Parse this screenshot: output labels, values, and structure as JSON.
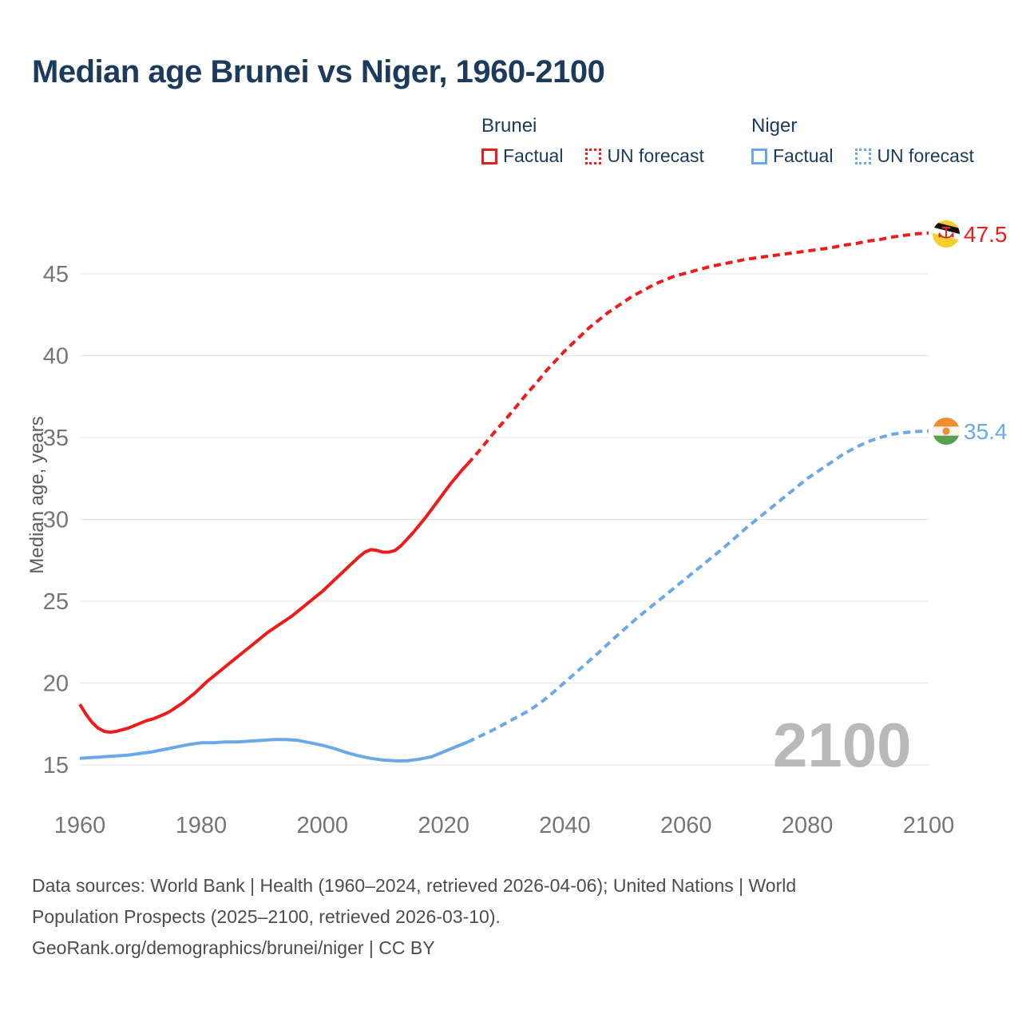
{
  "title": "Median age Brunei vs Niger, 1960-2100",
  "legend": {
    "groups": [
      {
        "label": "Brunei",
        "color": "#ee1b1b",
        "items": [
          {
            "label": "Factual",
            "style": "solid"
          },
          {
            "label": "UN forecast",
            "style": "dotted"
          }
        ]
      },
      {
        "label": "Niger",
        "color": "#6aa9e9",
        "items": [
          {
            "label": "Factual",
            "style": "solid"
          },
          {
            "label": "UN forecast",
            "style": "dotted"
          }
        ]
      }
    ]
  },
  "chart_data": {
    "type": "line",
    "title": "Median age Brunei vs Niger, 1960-2100",
    "xlabel": "",
    "ylabel": "Median age, years",
    "xlim": [
      1960,
      2100
    ],
    "ylim": [
      15,
      47.5
    ],
    "xticks": [
      1960,
      1980,
      2000,
      2020,
      2040,
      2060,
      2080,
      2100
    ],
    "yticks": [
      15,
      20,
      25,
      30,
      35,
      40,
      45
    ],
    "grid": "horizontal",
    "legend_position": "top-right",
    "series": [
      {
        "name": "Brunei Factual",
        "color": "#ee1b1b",
        "dash": false,
        "points": [
          [
            1960,
            18.7
          ],
          [
            1961,
            18.1
          ],
          [
            1962,
            17.6
          ],
          [
            1963,
            17.25
          ],
          [
            1964,
            17.05
          ],
          [
            1965,
            17.0
          ],
          [
            1966,
            17.05
          ],
          [
            1967,
            17.15
          ],
          [
            1968,
            17.25
          ],
          [
            1969,
            17.4
          ],
          [
            1970,
            17.55
          ],
          [
            1971,
            17.7
          ],
          [
            1972,
            17.8
          ],
          [
            1973,
            17.95
          ],
          [
            1974,
            18.1
          ],
          [
            1975,
            18.3
          ],
          [
            1976,
            18.55
          ],
          [
            1977,
            18.8
          ],
          [
            1978,
            19.1
          ],
          [
            1979,
            19.4
          ],
          [
            1980,
            19.75
          ],
          [
            1981,
            20.1
          ],
          [
            1982,
            20.4
          ],
          [
            1983,
            20.7
          ],
          [
            1984,
            21.0
          ],
          [
            1985,
            21.3
          ],
          [
            1986,
            21.6
          ],
          [
            1987,
            21.9
          ],
          [
            1988,
            22.2
          ],
          [
            1989,
            22.5
          ],
          [
            1990,
            22.8
          ],
          [
            1991,
            23.1
          ],
          [
            1992,
            23.35
          ],
          [
            1993,
            23.6
          ],
          [
            1994,
            23.85
          ],
          [
            1995,
            24.1
          ],
          [
            1996,
            24.4
          ],
          [
            1997,
            24.7
          ],
          [
            1998,
            25.0
          ],
          [
            1999,
            25.3
          ],
          [
            2000,
            25.6
          ],
          [
            2001,
            25.95
          ],
          [
            2002,
            26.3
          ],
          [
            2003,
            26.65
          ],
          [
            2004,
            27.0
          ],
          [
            2005,
            27.35
          ],
          [
            2006,
            27.7
          ],
          [
            2007,
            28.0
          ],
          [
            2008,
            28.15
          ],
          [
            2009,
            28.1
          ],
          [
            2010,
            28.0
          ],
          [
            2011,
            28.0
          ],
          [
            2012,
            28.1
          ],
          [
            2013,
            28.4
          ],
          [
            2014,
            28.8
          ],
          [
            2015,
            29.2
          ],
          [
            2016,
            29.65
          ],
          [
            2017,
            30.1
          ],
          [
            2018,
            30.6
          ],
          [
            2019,
            31.1
          ],
          [
            2020,
            31.6
          ],
          [
            2021,
            32.1
          ],
          [
            2022,
            32.55
          ],
          [
            2023,
            33.0
          ],
          [
            2024,
            33.4
          ]
        ]
      },
      {
        "name": "Brunei UN forecast",
        "color": "#ee1b1b",
        "dash": true,
        "points": [
          [
            2024,
            33.4
          ],
          [
            2025,
            33.8
          ],
          [
            2026,
            34.25
          ],
          [
            2027,
            34.7
          ],
          [
            2028,
            35.15
          ],
          [
            2029,
            35.6
          ],
          [
            2030,
            36.0
          ],
          [
            2031,
            36.45
          ],
          [
            2032,
            36.9
          ],
          [
            2033,
            37.35
          ],
          [
            2034,
            37.8
          ],
          [
            2035,
            38.2
          ],
          [
            2036,
            38.65
          ],
          [
            2037,
            39.1
          ],
          [
            2038,
            39.5
          ],
          [
            2039,
            39.9
          ],
          [
            2040,
            40.3
          ],
          [
            2041,
            40.65
          ],
          [
            2042,
            41.0
          ],
          [
            2043,
            41.35
          ],
          [
            2044,
            41.7
          ],
          [
            2045,
            42.0
          ],
          [
            2046,
            42.3
          ],
          [
            2047,
            42.6
          ],
          [
            2048,
            42.85
          ],
          [
            2049,
            43.1
          ],
          [
            2050,
            43.35
          ],
          [
            2051,
            43.6
          ],
          [
            2052,
            43.8
          ],
          [
            2053,
            44.0
          ],
          [
            2054,
            44.2
          ],
          [
            2055,
            44.4
          ],
          [
            2056,
            44.55
          ],
          [
            2057,
            44.7
          ],
          [
            2058,
            44.85
          ],
          [
            2059,
            44.95
          ],
          [
            2060,
            45.05
          ],
          [
            2062,
            45.25
          ],
          [
            2064,
            45.45
          ],
          [
            2066,
            45.6
          ],
          [
            2068,
            45.75
          ],
          [
            2070,
            45.9
          ],
          [
            2072,
            46.0
          ],
          [
            2074,
            46.1
          ],
          [
            2076,
            46.2
          ],
          [
            2078,
            46.3
          ],
          [
            2080,
            46.4
          ],
          [
            2082,
            46.5
          ],
          [
            2084,
            46.6
          ],
          [
            2086,
            46.75
          ],
          [
            2088,
            46.85
          ],
          [
            2090,
            47.0
          ],
          [
            2092,
            47.1
          ],
          [
            2094,
            47.25
          ],
          [
            2096,
            47.35
          ],
          [
            2098,
            47.45
          ],
          [
            2100,
            47.5
          ]
        ]
      },
      {
        "name": "Niger Factual",
        "color": "#6aa9e9",
        "dash": false,
        "points": [
          [
            1960,
            15.4
          ],
          [
            1962,
            15.45
          ],
          [
            1964,
            15.5
          ],
          [
            1966,
            15.55
          ],
          [
            1968,
            15.6
          ],
          [
            1970,
            15.7
          ],
          [
            1972,
            15.8
          ],
          [
            1974,
            15.95
          ],
          [
            1976,
            16.1
          ],
          [
            1978,
            16.25
          ],
          [
            1980,
            16.35
          ],
          [
            1982,
            16.35
          ],
          [
            1984,
            16.4
          ],
          [
            1986,
            16.4
          ],
          [
            1988,
            16.45
          ],
          [
            1990,
            16.5
          ],
          [
            1992,
            16.55
          ],
          [
            1994,
            16.55
          ],
          [
            1996,
            16.5
          ],
          [
            1998,
            16.35
          ],
          [
            2000,
            16.2
          ],
          [
            2002,
            16.0
          ],
          [
            2004,
            15.75
          ],
          [
            2006,
            15.55
          ],
          [
            2008,
            15.4
          ],
          [
            2010,
            15.3
          ],
          [
            2012,
            15.25
          ],
          [
            2014,
            15.25
          ],
          [
            2016,
            15.35
          ],
          [
            2018,
            15.5
          ],
          [
            2020,
            15.8
          ],
          [
            2022,
            16.1
          ],
          [
            2024,
            16.4
          ]
        ]
      },
      {
        "name": "Niger UN forecast",
        "color": "#6aa9e9",
        "dash": true,
        "points": [
          [
            2024,
            16.4
          ],
          [
            2026,
            16.75
          ],
          [
            2028,
            17.1
          ],
          [
            2030,
            17.5
          ],
          [
            2032,
            17.9
          ],
          [
            2034,
            18.3
          ],
          [
            2036,
            18.8
          ],
          [
            2038,
            19.4
          ],
          [
            2040,
            20.05
          ],
          [
            2042,
            20.7
          ],
          [
            2044,
            21.35
          ],
          [
            2046,
            22.0
          ],
          [
            2048,
            22.7
          ],
          [
            2050,
            23.35
          ],
          [
            2052,
            24.0
          ],
          [
            2054,
            24.6
          ],
          [
            2056,
            25.2
          ],
          [
            2058,
            25.8
          ],
          [
            2060,
            26.4
          ],
          [
            2062,
            27.0
          ],
          [
            2064,
            27.6
          ],
          [
            2066,
            28.2
          ],
          [
            2068,
            28.85
          ],
          [
            2070,
            29.5
          ],
          [
            2072,
            30.1
          ],
          [
            2074,
            30.7
          ],
          [
            2076,
            31.3
          ],
          [
            2078,
            31.9
          ],
          [
            2080,
            32.5
          ],
          [
            2082,
            33.0
          ],
          [
            2084,
            33.5
          ],
          [
            2086,
            34.0
          ],
          [
            2088,
            34.4
          ],
          [
            2090,
            34.75
          ],
          [
            2092,
            35.0
          ],
          [
            2094,
            35.2
          ],
          [
            2096,
            35.3
          ],
          [
            2098,
            35.37
          ],
          [
            2100,
            35.4
          ]
        ]
      }
    ],
    "end_labels": [
      {
        "series": "Brunei",
        "value": "47.5",
        "color": "#ee1b1b",
        "flag": "brunei-flag"
      },
      {
        "series": "Niger",
        "value": "35.4",
        "color": "#6aa9e9",
        "flag": "niger-flag"
      }
    ],
    "watermark": "2100"
  },
  "footer": {
    "line1": "Data sources: World Bank | Health (1960–2024, retrieved 2026-04-06); United Nations | World",
    "line2": "Population Prospects (2025–2100, retrieved 2026-03-10).",
    "line3": "GeoRank.org/demographics/brunei/niger | CC BY"
  }
}
